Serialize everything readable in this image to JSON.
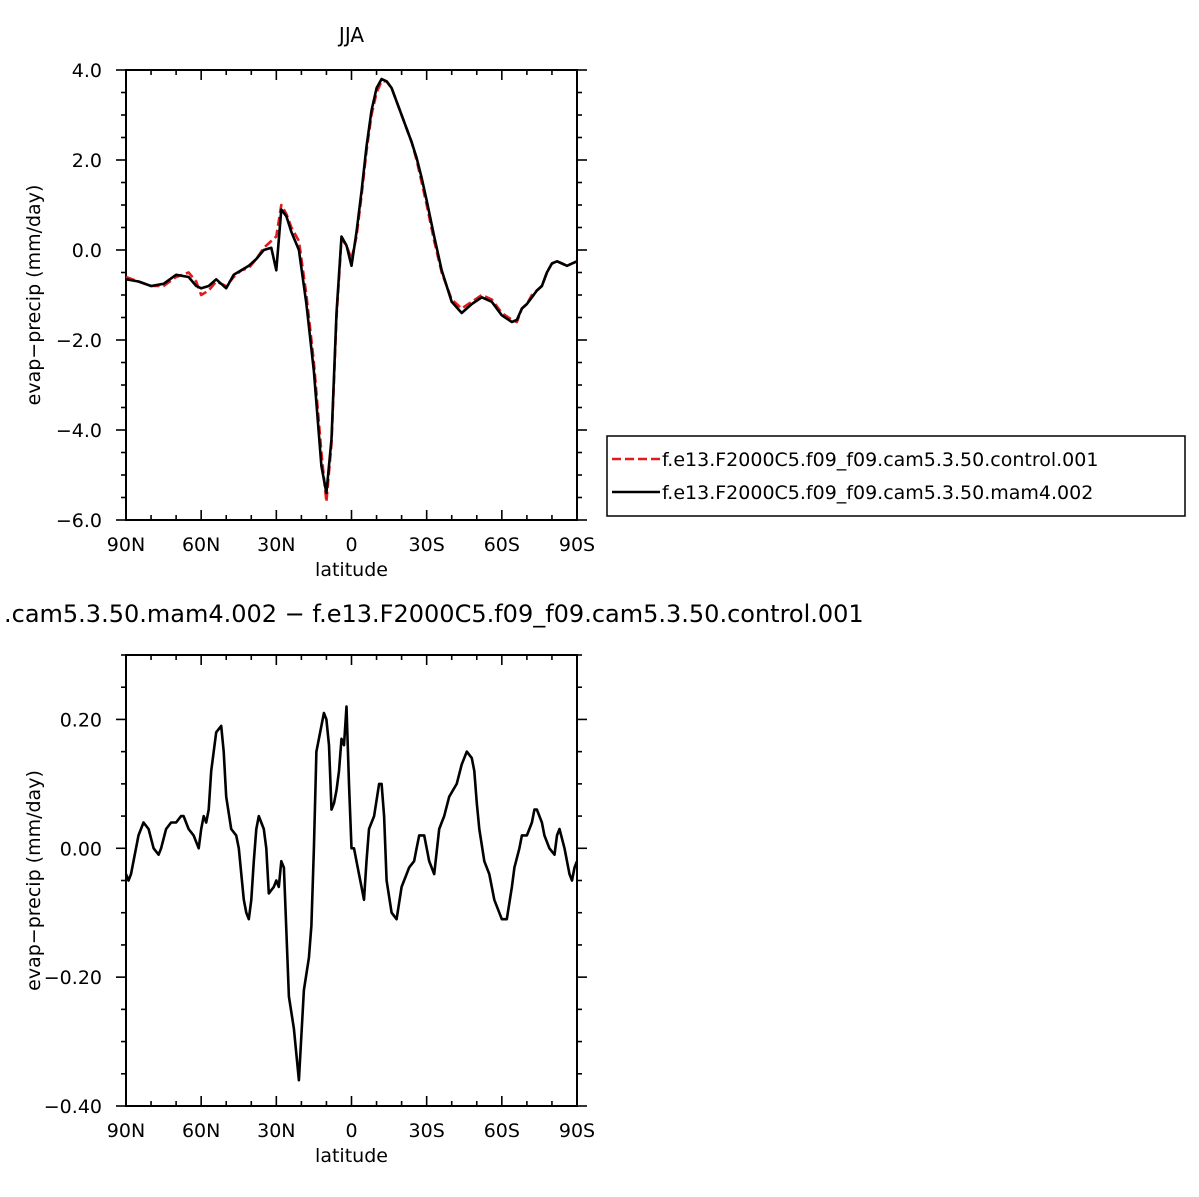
{
  "chart_data": [
    {
      "type": "line",
      "title": "JJA",
      "xlabel": "latitude",
      "ylabel": "evap−precip (mm/day)",
      "x_axis_note": "latitude from 90N (left) to 90S (right); negative = north",
      "xlim": [
        -90,
        90
      ],
      "ylim": [
        -6,
        4
      ],
      "xticks": [
        -90,
        -60,
        -30,
        0,
        30,
        60,
        90
      ],
      "xtick_labels": [
        "90N",
        "60N",
        "30N",
        "0",
        "30S",
        "60S",
        "90S"
      ],
      "yticks": [
        4,
        2,
        0,
        -2,
        -4,
        -6
      ],
      "ytick_labels": [
        "4.0",
        "2.0",
        "0.0",
        "−2.0",
        "−4.0",
        "−6.0"
      ],
      "grid": false,
      "legend_position": "right",
      "series": [
        {
          "name": "f.e13.F2000C5.f09_f09.cam5.3.50.control.001",
          "color": "#e31a1c",
          "dash": "dashed",
          "x": [
            -90,
            -85,
            -80,
            -75,
            -70,
            -65,
            -62,
            -60,
            -57,
            -54,
            -50,
            -47,
            -44,
            -41,
            -38,
            -35,
            -32,
            -30,
            -28,
            -26,
            -24,
            -21,
            -18,
            -15,
            -12,
            -10,
            -8,
            -6,
            -4,
            -2,
            0,
            2,
            4,
            6,
            8,
            10,
            12,
            14,
            16,
            18,
            20,
            22,
            24,
            26,
            28,
            30,
            33,
            36,
            40,
            44,
            48,
            52,
            56,
            60,
            64,
            66,
            68,
            70,
            72,
            74,
            76,
            78,
            80,
            82,
            84,
            86,
            88,
            90
          ],
          "y": [
            -0.6,
            -0.7,
            -0.8,
            -0.8,
            -0.6,
            -0.5,
            -0.7,
            -1.0,
            -0.9,
            -0.7,
            -0.8,
            -0.6,
            -0.45,
            -0.4,
            -0.2,
            0.05,
            0.2,
            0.3,
            1.0,
            0.8,
            0.5,
            0.2,
            -1.0,
            -2.5,
            -4.5,
            -5.6,
            -4.3,
            -1.5,
            0.25,
            0.1,
            -0.2,
            0.3,
            1.2,
            2.2,
            3.0,
            3.5,
            3.75,
            3.75,
            3.6,
            3.3,
            3.0,
            2.7,
            2.4,
            2.0,
            1.5,
            1.0,
            0.2,
            -0.5,
            -1.1,
            -1.3,
            -1.15,
            -1.0,
            -1.1,
            -1.4,
            -1.55,
            -1.6,
            -1.3,
            -1.2,
            -1.0,
            -0.9,
            -0.8,
            -0.5,
            -0.3,
            -0.25,
            -0.3,
            -0.35,
            -0.3,
            -0.25
          ]
        },
        {
          "name": "f.e13.F2000C5.f09_f09.cam5.3.50.mam4.002",
          "color": "#000000",
          "dash": "solid",
          "x": [
            -90,
            -85,
            -80,
            -75,
            -70,
            -65,
            -62,
            -60,
            -57,
            -54,
            -50,
            -47,
            -44,
            -41,
            -38,
            -35,
            -32,
            -30,
            -28,
            -26,
            -24,
            -21,
            -18,
            -15,
            -12,
            -10,
            -8,
            -6,
            -4,
            -2,
            0,
            2,
            4,
            6,
            8,
            10,
            12,
            14,
            16,
            18,
            20,
            22,
            24,
            26,
            28,
            30,
            33,
            36,
            40,
            44,
            48,
            52,
            56,
            60,
            64,
            66,
            68,
            70,
            72,
            74,
            76,
            78,
            80,
            82,
            84,
            86,
            88,
            90
          ],
          "y": [
            -0.65,
            -0.7,
            -0.8,
            -0.75,
            -0.55,
            -0.6,
            -0.8,
            -0.85,
            -0.8,
            -0.65,
            -0.85,
            -0.55,
            -0.45,
            -0.35,
            -0.2,
            0.0,
            0.05,
            -0.45,
            0.9,
            0.75,
            0.4,
            0.0,
            -1.2,
            -2.7,
            -4.8,
            -5.4,
            -4.2,
            -1.4,
            0.3,
            0.1,
            -0.35,
            0.4,
            1.3,
            2.3,
            3.1,
            3.6,
            3.8,
            3.75,
            3.6,
            3.3,
            3.0,
            2.7,
            2.4,
            2.05,
            1.6,
            1.1,
            0.3,
            -0.45,
            -1.15,
            -1.4,
            -1.2,
            -1.05,
            -1.15,
            -1.45,
            -1.6,
            -1.55,
            -1.3,
            -1.2,
            -1.05,
            -0.9,
            -0.8,
            -0.5,
            -0.3,
            -0.25,
            -0.3,
            -0.35,
            -0.3,
            -0.25
          ]
        }
      ]
    },
    {
      "type": "line",
      "title": ".cam5.3.50.mam4.002 − f.e13.F2000C5.f09_f09.cam5.3.50.control.001",
      "xlabel": "latitude",
      "ylabel": "evap−precip (mm/day)",
      "xlim": [
        -90,
        90
      ],
      "ylim": [
        -0.4,
        0.3
      ],
      "xticks": [
        -90,
        -60,
        -30,
        0,
        30,
        60,
        90
      ],
      "xtick_labels": [
        "90N",
        "60N",
        "30N",
        "0",
        "30S",
        "60S",
        "90S"
      ],
      "yticks": [
        0.2,
        0.0,
        -0.2,
        -0.4
      ],
      "ytick_labels": [
        "0.20",
        "0.00",
        "−0.20",
        "−0.40"
      ],
      "grid": false,
      "series": [
        {
          "color": "#000000",
          "dash": "solid",
          "x": [
            -90,
            -89,
            -88,
            -86,
            -85,
            -83,
            -81,
            -79,
            -77,
            -76,
            -74,
            -72,
            -70,
            -68,
            -67,
            -65,
            -63,
            -61,
            -60,
            -59,
            -58,
            -57,
            -56,
            -54,
            -52,
            -51,
            -50,
            -48,
            -46,
            -45,
            -43,
            -42,
            -41,
            -40,
            -39,
            -38,
            -37,
            -35,
            -34,
            -33,
            -31,
            -30,
            -29,
            -28,
            -27,
            -25,
            -23,
            -21,
            -19,
            -17,
            -16,
            -15,
            -14,
            -12,
            -11,
            -10,
            -9,
            -8,
            -7,
            -6,
            -5,
            -4,
            -3,
            -2,
            -1,
            0,
            1,
            2,
            3,
            4,
            5,
            6,
            7,
            9,
            11,
            12,
            13,
            14,
            16,
            18,
            20,
            22,
            23,
            25,
            26,
            27,
            29,
            31,
            33,
            35,
            36,
            37,
            39,
            42,
            44,
            46,
            48,
            49,
            50,
            51,
            53,
            55,
            57,
            59,
            60,
            62,
            64,
            65,
            67,
            68,
            70,
            71,
            72,
            73,
            74,
            76,
            77,
            79,
            81,
            82,
            83,
            85,
            86,
            87,
            88,
            89,
            90
          ],
          "y": [
            -0.04,
            -0.05,
            -0.04,
            0.0,
            0.02,
            0.04,
            0.03,
            0.0,
            -0.01,
            0.0,
            0.03,
            0.04,
            0.04,
            0.05,
            0.05,
            0.03,
            0.02,
            0.0,
            0.03,
            0.05,
            0.04,
            0.06,
            0.12,
            0.18,
            0.19,
            0.15,
            0.08,
            0.03,
            0.02,
            0.0,
            -0.08,
            -0.1,
            -0.11,
            -0.08,
            -0.02,
            0.03,
            0.05,
            0.03,
            0.0,
            -0.07,
            -0.06,
            -0.05,
            -0.06,
            -0.02,
            -0.03,
            -0.23,
            -0.28,
            -0.36,
            -0.22,
            -0.17,
            -0.12,
            0.0,
            0.15,
            0.19,
            0.21,
            0.2,
            0.16,
            0.06,
            0.07,
            0.09,
            0.12,
            0.17,
            0.16,
            0.22,
            0.1,
            0.0,
            0.0,
            -0.02,
            -0.04,
            -0.06,
            -0.08,
            -0.02,
            0.03,
            0.05,
            0.1,
            0.1,
            0.05,
            -0.05,
            -0.1,
            -0.11,
            -0.06,
            -0.04,
            -0.03,
            -0.02,
            0.0,
            0.02,
            0.02,
            -0.02,
            -0.04,
            0.03,
            0.04,
            0.05,
            0.08,
            0.1,
            0.13,
            0.15,
            0.14,
            0.12,
            0.07,
            0.03,
            -0.02,
            -0.04,
            -0.08,
            -0.1,
            -0.11,
            -0.11,
            -0.06,
            -0.03,
            0.0,
            0.02,
            0.02,
            0.03,
            0.04,
            0.06,
            0.06,
            0.04,
            0.02,
            0.0,
            -0.01,
            0.02,
            0.03,
            0.0,
            -0.02,
            -0.04,
            -0.05,
            -0.03,
            -0.02
          ]
        }
      ]
    }
  ]
}
